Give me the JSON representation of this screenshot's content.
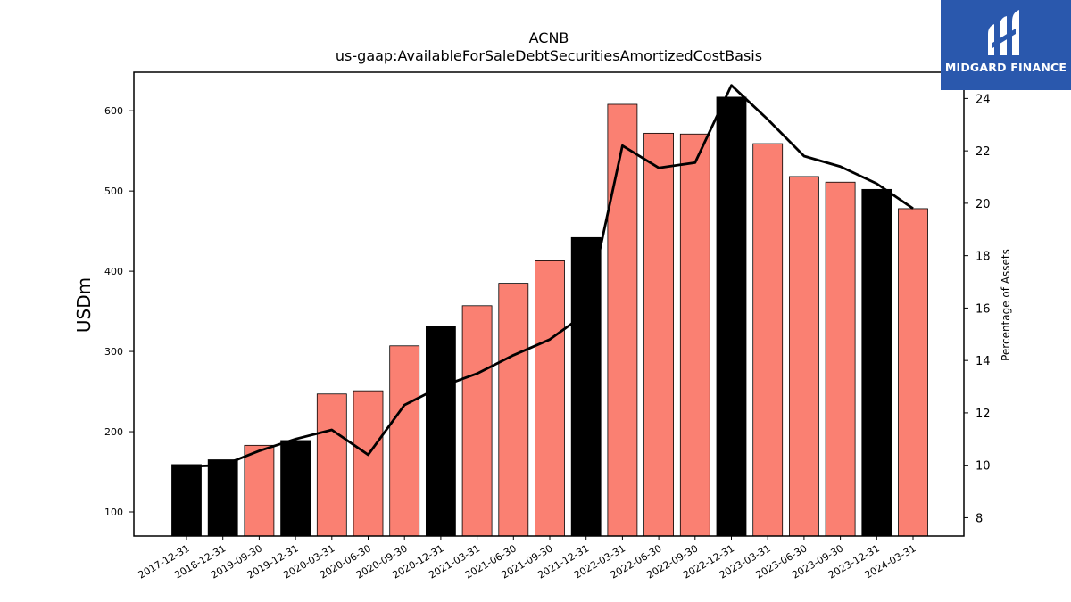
{
  "chart_data": {
    "type": "bar",
    "title": "ACNB",
    "subtitle": "us-gaap:AvailableForSaleDebtSecuritiesAmortizedCostBasis",
    "ylabel": "USDm",
    "y2label": "Percentage of Assets",
    "ylim": [
      70,
      648
    ],
    "y2lim": [
      7.3,
      25.0
    ],
    "yticks": [
      100,
      200,
      300,
      400,
      500,
      600
    ],
    "y2ticks": [
      8,
      10,
      12,
      14,
      16,
      18,
      20,
      22,
      24
    ],
    "grid": false,
    "categories": [
      "2017-12-31",
      "2018-12-31",
      "2019-09-30",
      "2019-12-31",
      "2020-03-31",
      "2020-06-30",
      "2020-09-30",
      "2020-12-31",
      "2021-03-31",
      "2021-06-30",
      "2021-09-30",
      "2021-12-31",
      "2022-03-31",
      "2022-06-30",
      "2022-09-30",
      "2022-12-31",
      "2023-03-31",
      "2023-06-30",
      "2023-09-30",
      "2023-12-31",
      "2024-03-31"
    ],
    "series": [
      {
        "kind": "bar",
        "values": [
          159,
          165,
          183,
          189,
          247,
          251,
          307,
          331,
          357,
          385,
          413,
          442,
          608,
          572,
          571,
          617,
          559,
          518,
          511,
          502,
          478
        ],
        "colors": [
          "#000000",
          "#000000",
          "#fa8072",
          "#000000",
          "#fa8072",
          "#fa8072",
          "#fa8072",
          "#000000",
          "#fa8072",
          "#fa8072",
          "#fa8072",
          "#000000",
          "#fa8072",
          "#fa8072",
          "#fa8072",
          "#000000",
          "#fa8072",
          "#fa8072",
          "#fa8072",
          "#000000",
          "#fa8072"
        ]
      },
      {
        "kind": "line",
        "axis": "right",
        "color": "#000000",
        "values": [
          9.95,
          10.0,
          10.55,
          11.0,
          11.35,
          10.4,
          12.3,
          13.0,
          13.5,
          14.2,
          14.8,
          15.8,
          22.2,
          21.35,
          21.55,
          24.5,
          23.2,
          21.8,
          21.4,
          20.75,
          19.8
        ]
      }
    ]
  },
  "logo": {
    "text": "MIDGARD FINANCE"
  }
}
